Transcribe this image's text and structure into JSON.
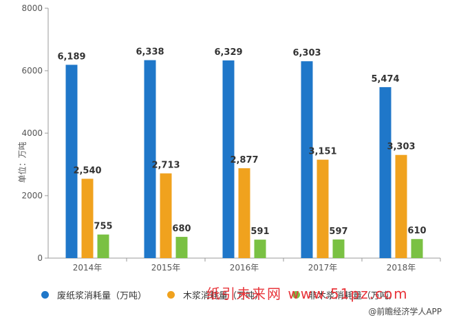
{
  "chart_data": {
    "type": "bar",
    "categories": [
      "2014年",
      "2015年",
      "2016年",
      "2017年",
      "2018年"
    ],
    "series": [
      {
        "name": "废纸浆消耗量（万吨）",
        "color": "#1f77c9",
        "values": [
          6189,
          6338,
          6329,
          6303,
          5474
        ],
        "labels": [
          "6,189",
          "6,338",
          "6,329",
          "6,303",
          "5,474"
        ]
      },
      {
        "name": "木浆消耗量（万吨）",
        "color": "#f0a21e",
        "values": [
          2540,
          2713,
          2877,
          3151,
          3303
        ],
        "labels": [
          "2,540",
          "2,713",
          "2,877",
          "3,151",
          "3,303"
        ]
      },
      {
        "name": "非木浆消耗量（万吨）",
        "color": "#7ac143",
        "values": [
          755,
          680,
          591,
          597,
          610
        ],
        "labels": [
          "755",
          "680",
          "591",
          "597",
          "610"
        ]
      }
    ],
    "ylabel": "单位：万吨",
    "ylim": [
      0,
      8000
    ],
    "yticks": [
      "0",
      "2000",
      "4000",
      "6000",
      "8000"
    ],
    "grid": false,
    "legend_position": "bottom"
  },
  "watermark": "纸引未来网 www.51pz.com",
  "source": "@前瞻经济学人APP"
}
